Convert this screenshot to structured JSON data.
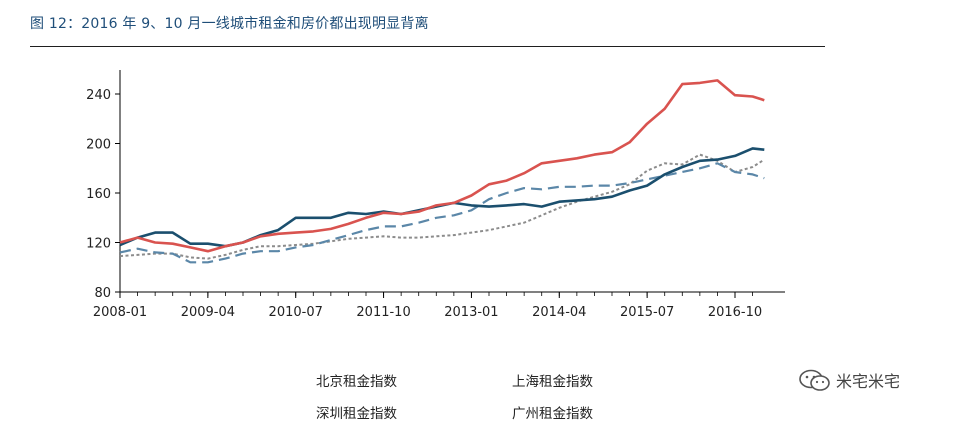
{
  "title": "图 12：2016 年 9、10 月一线城市租金和房价都出现明显背离",
  "watermark": "米宅米宅",
  "chart_data": {
    "type": "line",
    "xlabel": "",
    "ylabel": "",
    "ylim": [
      80,
      260
    ],
    "yticks": [
      80,
      120,
      160,
      200,
      240
    ],
    "x_tick_labels": [
      "2008-01",
      "2009-04",
      "2010-07",
      "2011-10",
      "2013-01",
      "2014-04",
      "2015-07",
      "2016-10"
    ],
    "x_range": [
      "2008-01",
      "2017-03"
    ],
    "legend_position": "bottom",
    "grid": false,
    "series": [
      {
        "name": "北京租金指数",
        "color": "#1b4f6e",
        "style": "solid",
        "points": [
          [
            "2008-01",
            118
          ],
          [
            "2008-04",
            124
          ],
          [
            "2008-07",
            128
          ],
          [
            "2008-10",
            128
          ],
          [
            "2009-01",
            119
          ],
          [
            "2009-04",
            119
          ],
          [
            "2009-07",
            117
          ],
          [
            "2009-10",
            120
          ],
          [
            "2010-01",
            126
          ],
          [
            "2010-04",
            130
          ],
          [
            "2010-07",
            140
          ],
          [
            "2010-10",
            140
          ],
          [
            "2011-01",
            140
          ],
          [
            "2011-04",
            144
          ],
          [
            "2011-07",
            143
          ],
          [
            "2011-10",
            145
          ],
          [
            "2012-01",
            143
          ],
          [
            "2012-04",
            146
          ],
          [
            "2012-07",
            149
          ],
          [
            "2012-10",
            152
          ],
          [
            "2013-01",
            150
          ],
          [
            "2013-04",
            149
          ],
          [
            "2013-07",
            150
          ],
          [
            "2013-10",
            151
          ],
          [
            "2014-01",
            149
          ],
          [
            "2014-04",
            153
          ],
          [
            "2014-07",
            154
          ],
          [
            "2014-10",
            155
          ],
          [
            "2015-01",
            157
          ],
          [
            "2015-04",
            162
          ],
          [
            "2015-07",
            166
          ],
          [
            "2015-10",
            175
          ],
          [
            "2016-01",
            181
          ],
          [
            "2016-04",
            186
          ],
          [
            "2016-07",
            187
          ],
          [
            "2016-10",
            190
          ],
          [
            "2017-01",
            196
          ],
          [
            "2017-03",
            195
          ]
        ]
      },
      {
        "name": "上海租金指数",
        "color": "#d9534f",
        "style": "solid",
        "points": [
          [
            "2008-01",
            120
          ],
          [
            "2008-04",
            124
          ],
          [
            "2008-07",
            120
          ],
          [
            "2008-10",
            119
          ],
          [
            "2009-01",
            116
          ],
          [
            "2009-04",
            113
          ],
          [
            "2009-07",
            117
          ],
          [
            "2009-10",
            120
          ],
          [
            "2010-01",
            125
          ],
          [
            "2010-04",
            127
          ],
          [
            "2010-07",
            128
          ],
          [
            "2010-10",
            129
          ],
          [
            "2011-01",
            131
          ],
          [
            "2011-04",
            135
          ],
          [
            "2011-07",
            140
          ],
          [
            "2011-10",
            144
          ],
          [
            "2012-01",
            143
          ],
          [
            "2012-04",
            145
          ],
          [
            "2012-07",
            150
          ],
          [
            "2012-10",
            152
          ],
          [
            "2013-01",
            158
          ],
          [
            "2013-04",
            167
          ],
          [
            "2013-07",
            170
          ],
          [
            "2013-10",
            176
          ],
          [
            "2014-01",
            184
          ],
          [
            "2014-04",
            186
          ],
          [
            "2014-07",
            188
          ],
          [
            "2014-10",
            191
          ],
          [
            "2015-01",
            193
          ],
          [
            "2015-04",
            201
          ],
          [
            "2015-07",
            216
          ],
          [
            "2015-10",
            228
          ],
          [
            "2016-01",
            248
          ],
          [
            "2016-04",
            249
          ],
          [
            "2016-07",
            251
          ],
          [
            "2016-10",
            239
          ],
          [
            "2017-01",
            238
          ],
          [
            "2017-03",
            235
          ]
        ]
      },
      {
        "name": "深圳租金指数",
        "color": "#8c8c8c",
        "style": "dotted",
        "points": [
          [
            "2008-01",
            109
          ],
          [
            "2008-04",
            110
          ],
          [
            "2008-07",
            111
          ],
          [
            "2008-10",
            111
          ],
          [
            "2009-01",
            108
          ],
          [
            "2009-04",
            107
          ],
          [
            "2009-07",
            110
          ],
          [
            "2009-10",
            114
          ],
          [
            "2010-01",
            117
          ],
          [
            "2010-04",
            117
          ],
          [
            "2010-07",
            118
          ],
          [
            "2010-10",
            119
          ],
          [
            "2011-01",
            121
          ],
          [
            "2011-04",
            123
          ],
          [
            "2011-07",
            124
          ],
          [
            "2011-10",
            125
          ],
          [
            "2012-01",
            124
          ],
          [
            "2012-04",
            124
          ],
          [
            "2012-07",
            125
          ],
          [
            "2012-10",
            126
          ],
          [
            "2013-01",
            128
          ],
          [
            "2013-04",
            130
          ],
          [
            "2013-07",
            133
          ],
          [
            "2013-10",
            136
          ],
          [
            "2014-01",
            142
          ],
          [
            "2014-04",
            148
          ],
          [
            "2014-07",
            153
          ],
          [
            "2014-10",
            157
          ],
          [
            "2015-01",
            161
          ],
          [
            "2015-04",
            167
          ],
          [
            "2015-07",
            178
          ],
          [
            "2015-10",
            184
          ],
          [
            "2016-01",
            183
          ],
          [
            "2016-04",
            191
          ],
          [
            "2016-07",
            186
          ],
          [
            "2016-10",
            177
          ],
          [
            "2017-01",
            181
          ],
          [
            "2017-03",
            187
          ]
        ]
      },
      {
        "name": "广州租金指数",
        "color": "#5b87a8",
        "style": "dashed",
        "points": [
          [
            "2008-01",
            112
          ],
          [
            "2008-04",
            115
          ],
          [
            "2008-07",
            112
          ],
          [
            "2008-10",
            111
          ],
          [
            "2009-01",
            104
          ],
          [
            "2009-04",
            104
          ],
          [
            "2009-07",
            107
          ],
          [
            "2009-10",
            111
          ],
          [
            "2010-01",
            113
          ],
          [
            "2010-04",
            113
          ],
          [
            "2010-07",
            116
          ],
          [
            "2010-10",
            118
          ],
          [
            "2011-01",
            122
          ],
          [
            "2011-04",
            126
          ],
          [
            "2011-07",
            130
          ],
          [
            "2011-10",
            133
          ],
          [
            "2012-01",
            133
          ],
          [
            "2012-04",
            136
          ],
          [
            "2012-07",
            140
          ],
          [
            "2012-10",
            142
          ],
          [
            "2013-01",
            146
          ],
          [
            "2013-04",
            155
          ],
          [
            "2013-07",
            160
          ],
          [
            "2013-10",
            164
          ],
          [
            "2014-01",
            163
          ],
          [
            "2014-04",
            165
          ],
          [
            "2014-07",
            165
          ],
          [
            "2014-10",
            166
          ],
          [
            "2015-01",
            166
          ],
          [
            "2015-04",
            168
          ],
          [
            "2015-07",
            171
          ],
          [
            "2015-10",
            174
          ],
          [
            "2016-01",
            177
          ],
          [
            "2016-04",
            180
          ],
          [
            "2016-07",
            184
          ],
          [
            "2016-10",
            177
          ],
          [
            "2017-01",
            175
          ],
          [
            "2017-03",
            172
          ]
        ]
      }
    ]
  }
}
